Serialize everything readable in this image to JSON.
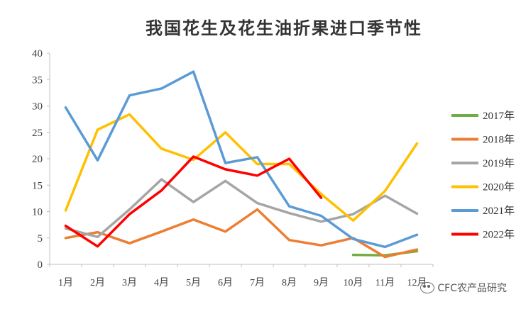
{
  "chart_data": {
    "type": "line",
    "title": "我国花生及花生油折果进口季节性",
    "categories": [
      "1月",
      "2月",
      "3月",
      "4月",
      "5月",
      "6月",
      "7月",
      "8月",
      "9月",
      "10月",
      "11月",
      "12月"
    ],
    "ylim": [
      0,
      40
    ],
    "yticks": [
      0,
      5,
      10,
      15,
      20,
      25,
      30,
      35,
      40
    ],
    "grid": false,
    "legend_position": "right",
    "series": [
      {
        "name": "2017年",
        "color": "#70ad47",
        "values": [
          null,
          null,
          null,
          null,
          null,
          null,
          null,
          null,
          null,
          1.8,
          1.7,
          2.5
        ]
      },
      {
        "name": "2018年",
        "color": "#ed7d31",
        "values": [
          5.0,
          6.1,
          4.0,
          6.2,
          8.5,
          6.2,
          10.4,
          4.6,
          3.6,
          5.0,
          1.4,
          2.8
        ]
      },
      {
        "name": "2019年",
        "color": "#a5a5a5",
        "values": [
          6.8,
          5.2,
          10.4,
          16.1,
          11.8,
          15.8,
          11.6,
          9.7,
          8.1,
          9.5,
          13.0,
          9.6
        ]
      },
      {
        "name": "2020年",
        "color": "#ffc000",
        "values": [
          10.2,
          25.5,
          28.4,
          21.9,
          19.8,
          25.0,
          19.0,
          19.0,
          13.3,
          8.3,
          13.9,
          22.9
        ]
      },
      {
        "name": "2021年",
        "color": "#5b9bd5",
        "values": [
          29.7,
          19.7,
          32.0,
          33.3,
          36.5,
          19.2,
          20.3,
          11.0,
          9.2,
          4.8,
          3.3,
          5.6
        ]
      },
      {
        "name": "2022年",
        "color": "#ff0000",
        "values": [
          7.3,
          3.4,
          9.5,
          14.0,
          20.4,
          18.0,
          16.8,
          20.0,
          12.6,
          null,
          null,
          null
        ]
      }
    ]
  },
  "watermark": {
    "text": "CFC农产品研究",
    "icon": "wechat-icon"
  }
}
